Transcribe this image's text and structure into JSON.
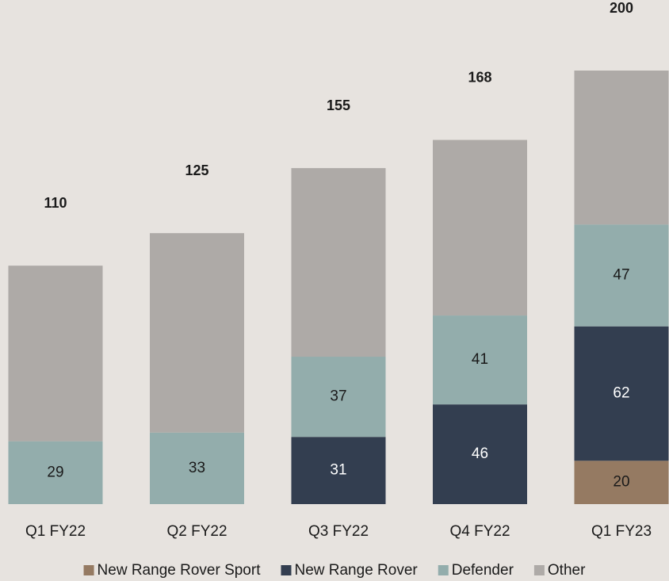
{
  "chart_data": {
    "type": "stacked_bar",
    "categories": [
      "Q1 FY22",
      "Q2 FY22",
      "Q3 FY22",
      "Q4 FY22",
      "Q1 FY23"
    ],
    "series": [
      {
        "name": "New Range Rover Sport",
        "color": "#957a62",
        "values": [
          null,
          null,
          null,
          null,
          20
        ],
        "show_labels": true
      },
      {
        "name": "New Range Rover",
        "color": "#333e50",
        "values": [
          null,
          null,
          31,
          46,
          62
        ],
        "show_labels": true
      },
      {
        "name": "Defender",
        "color": "#93adac",
        "values": [
          29,
          33,
          37,
          41,
          47
        ],
        "show_labels": true
      },
      {
        "name": "Other",
        "color": "#aeaaa7",
        "values": [
          81,
          92,
          87,
          81,
          71
        ],
        "show_labels": false
      }
    ],
    "totals": [
      110,
      125,
      155,
      168,
      200
    ],
    "ylim": [
      0,
      200
    ]
  }
}
